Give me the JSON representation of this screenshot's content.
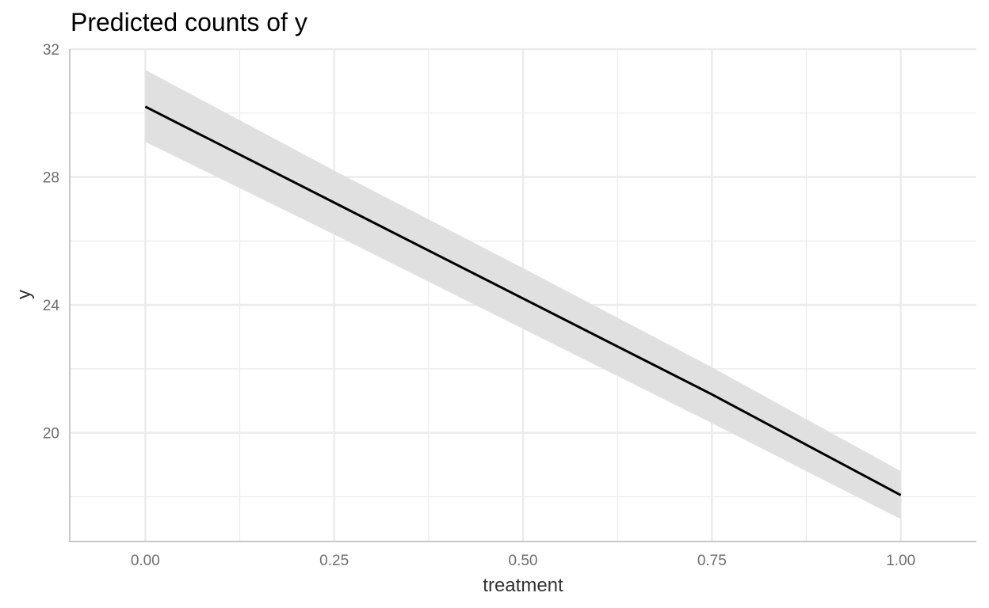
{
  "chart_data": {
    "type": "line",
    "title": "Predicted counts of y",
    "xlabel": "treatment",
    "ylabel": "y",
    "xlim": [
      -0.1,
      1.1
    ],
    "ylim": [
      16.6,
      32
    ],
    "x_ticks": [
      0,
      0.25,
      0.5,
      0.75,
      1
    ],
    "x_tick_labels": [
      "0.00",
      "0.25",
      "0.50",
      "0.75",
      "1.00"
    ],
    "x_minor_ticks": [
      0.125,
      0.375,
      0.625,
      0.875
    ],
    "y_ticks": [
      20,
      24,
      28,
      32
    ],
    "y_tick_labels": [
      "20",
      "24",
      "28",
      "32"
    ],
    "y_minor_ticks": [
      18,
      22,
      26,
      30
    ],
    "grid": true,
    "series": [
      {
        "x": [
          0,
          0.25,
          0.5,
          0.75,
          1
        ],
        "y": [
          30.2,
          27.2,
          24.2,
          21.2,
          18.05
        ],
        "ci_low": [
          29.1,
          26.2,
          23.25,
          20.3,
          17.3
        ],
        "ci_high": [
          31.35,
          28.2,
          25.15,
          22.05,
          18.8
        ]
      }
    ],
    "colors": {
      "line": "#000000",
      "band": "#e0e0e0",
      "grid": "#ebebeb",
      "axis": "#c8c8c8"
    }
  }
}
